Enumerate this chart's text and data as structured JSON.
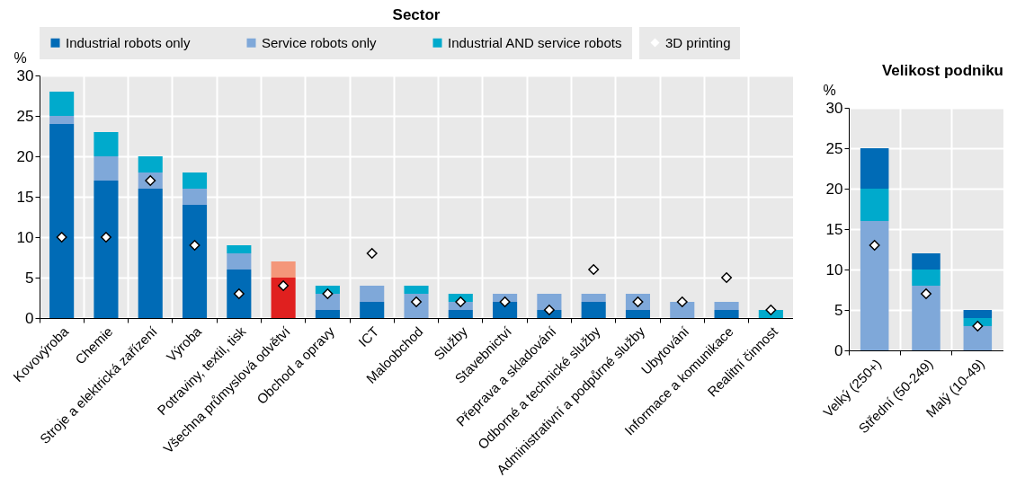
{
  "chart_data": [
    {
      "type": "bar",
      "stacked": true,
      "title": "Sector",
      "ylabel": "%",
      "grid": true,
      "legend": "top",
      "marker": "diamond",
      "categories": [
        "Kovovýroba",
        "Chemie",
        "Stroje a elektrická zařízení",
        "Výroba",
        "Potraviny, textil, tisk",
        "Všechna průmyslová odvětví",
        "Obchod a opravy",
        "ICT",
        "Maloobchod",
        "Služby",
        "Stavebnictví",
        "Přeprava a skladování",
        "Odborné a technické služby",
        "Administrativní a podpůrné služby",
        "Ubytování",
        "Informace a komunikace",
        "Realitní činnost"
      ],
      "series": [
        {
          "name": "Industrial robots only",
          "color": "#006bb6",
          "colors": [
            "#006bb6",
            "#006bb6",
            "#006bb6",
            "#006bb6",
            "#006bb6",
            "#e0201f",
            "#006bb6",
            "#006bb6",
            "#006bb6",
            "#006bb6",
            "#006bb6",
            "#006bb6",
            "#006bb6",
            "#006bb6",
            "#006bb6",
            "#006bb6",
            "#006bb6"
          ],
          "values": [
            24,
            17,
            16,
            14,
            6,
            5,
            1,
            2,
            0,
            1,
            2,
            1,
            2,
            1,
            0,
            1,
            0
          ]
        },
        {
          "name": "Service robots only",
          "color": "#7fa8d9",
          "colors": [
            "#7fa8d9",
            "#7fa8d9",
            "#7fa8d9",
            "#7fa8d9",
            "#7fa8d9",
            "#f4977a",
            "#7fa8d9",
            "#7fa8d9",
            "#7fa8d9",
            "#7fa8d9",
            "#7fa8d9",
            "#7fa8d9",
            "#7fa8d9",
            "#7fa8d9",
            "#7fa8d9",
            "#7fa8d9",
            "#7fa8d9"
          ],
          "values": [
            1,
            3,
            2,
            2,
            2,
            2,
            2,
            2,
            3,
            1,
            1,
            2,
            1,
            2,
            2,
            1,
            0
          ]
        },
        {
          "name": "Industrial AND service robots",
          "color": "#00aacc",
          "values": [
            3,
            3,
            2,
            2,
            1,
            0,
            1,
            0,
            1,
            1,
            0,
            0,
            0,
            0,
            0,
            0,
            1
          ]
        },
        {
          "name": "3D printing",
          "type": "scatter",
          "color": "#ffffff",
          "values": [
            10,
            10,
            17,
            9,
            3,
            4,
            3,
            8,
            2,
            2,
            2,
            1,
            6,
            2,
            2,
            5,
            1
          ]
        }
      ],
      "ylim": [
        0,
        30
      ],
      "yticks": [
        0,
        5,
        10,
        15,
        20,
        25,
        30
      ]
    },
    {
      "type": "bar",
      "stacked": true,
      "title": "Velikost podniku",
      "ylabel": "%",
      "grid": true,
      "marker": "diamond",
      "categories": [
        "Velký (250+)",
        "Střední (50-249)",
        "Malý (10-49)"
      ],
      "series": [
        {
          "color": "#7fa8d9",
          "values": [
            16,
            8,
            3
          ]
        },
        {
          "color": "#00aacc",
          "values": [
            4,
            2,
            1
          ]
        },
        {
          "color": "#006bb6",
          "values": [
            5,
            2,
            1
          ]
        },
        {
          "type": "scatter",
          "color": "#ffffff",
          "values": [
            13,
            7,
            3
          ]
        }
      ],
      "ylim": [
        0,
        30
      ],
      "yticks": [
        0,
        5,
        10,
        15,
        20,
        25,
        30
      ]
    }
  ]
}
